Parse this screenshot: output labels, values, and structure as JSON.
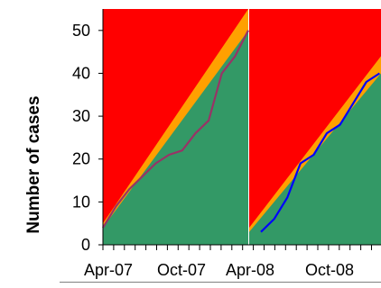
{
  "chart_data": {
    "type": "area",
    "title": "",
    "xlabel": "",
    "ylabel": "Number of cases",
    "ylim": [
      0,
      55
    ],
    "yticks": [
      0,
      10,
      20,
      30,
      40,
      50
    ],
    "x_tick_labels": [
      "Apr-07",
      "Oct-07",
      "Apr-08",
      "Oct-08"
    ],
    "colors": {
      "background_band": "#ff0000",
      "middle_band": "#ffa000",
      "lower_band": "#339966",
      "series_1": "#993366",
      "series_2": "#0000ff"
    },
    "panels": [
      {
        "months": 14,
        "lower_band": {
          "start": 4,
          "end": 50
        },
        "middle_band": {
          "start": 5,
          "end": 55
        },
        "series": {
          "color": "#993366",
          "values": [
            4,
            9,
            13,
            16,
            19,
            21,
            22,
            26,
            29,
            40,
            44,
            50
          ]
        }
      },
      {
        "months": 12,
        "lower_band": {
          "start": 3,
          "end": 40
        },
        "middle_band": {
          "start": 4,
          "end": 44
        },
        "series": {
          "color": "#0000ff",
          "values": [
            3,
            6,
            11,
            19,
            21,
            26,
            28,
            33,
            38,
            40
          ]
        }
      }
    ]
  }
}
